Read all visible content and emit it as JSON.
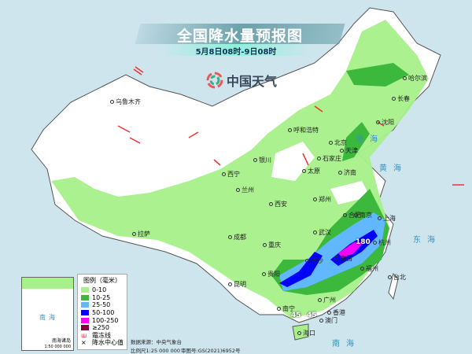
{
  "title": "全国降水量预报图",
  "subtitle": "5月8日08时-9日08时",
  "logo_text": "中国天气",
  "legend": {
    "title": "图例（毫米）",
    "items": [
      {
        "label": "0-10",
        "color": "#a7f08a"
      },
      {
        "label": "10-25",
        "color": "#3cb93c"
      },
      {
        "label": "25-50",
        "color": "#61b8ff"
      },
      {
        "label": "50-100",
        "color": "#0000fe"
      },
      {
        "label": "100-250",
        "color": "#fa00fa"
      },
      {
        "label": "≥250",
        "color": "#7f0040"
      }
    ],
    "frost_line": "霜冻线",
    "center_value": "降水中心值"
  },
  "source": "数据来源：中央气象台",
  "scale": "比例尺1:25 000 000",
  "review_no": "审图号:GS(2021)6952号",
  "inset": {
    "name": "南海诸岛",
    "scale": "1:50 000 000",
    "sea": "南海"
  },
  "cities": [
    "乌鲁木齐",
    "哈尔滨",
    "长春",
    "沈阳",
    "呼和浩特",
    "北京",
    "天津",
    "石家庄",
    "太原",
    "银川",
    "西宁",
    "兰州",
    "济南",
    "郑州",
    "西安",
    "合肥",
    "南京",
    "上海",
    "武汉",
    "成都",
    "重庆",
    "长沙",
    "杭州",
    "南昌",
    "贵阳",
    "福州",
    "台北",
    "昆明",
    "南宁",
    "广州",
    "香港",
    "澳门",
    "海口",
    "拉萨"
  ],
  "seas": [
    "渤海",
    "黄海",
    "东海",
    "南海"
  ],
  "values": [
    "180",
    "45",
    "45"
  ]
}
